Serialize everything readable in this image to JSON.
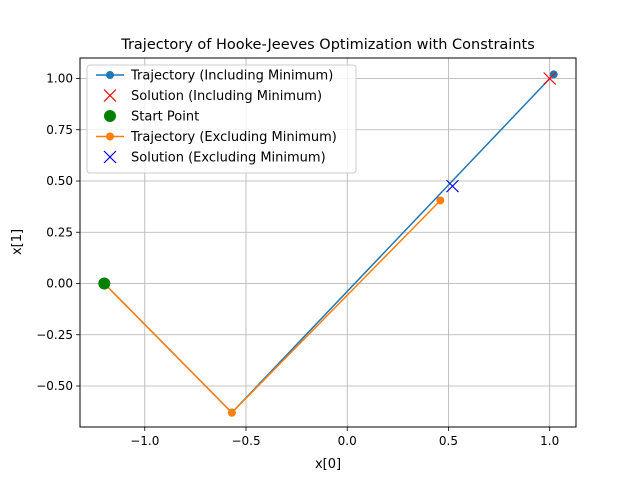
{
  "chart_data": {
    "type": "line",
    "title": "Trajectory of Hooke-Jeeves Optimization with Constraints",
    "xlabel": "x[0]",
    "ylabel": "x[1]",
    "xlim": [
      -1.32,
      1.13
    ],
    "ylim": [
      -0.7,
      1.1
    ],
    "grid": true,
    "legend_position": "top-left",
    "x_ticks": [
      -1.0,
      -0.5,
      0.0,
      0.5,
      1.0
    ],
    "x_tick_labels": [
      "−1.0",
      "−0.5",
      "0.0",
      "0.5",
      "1.0"
    ],
    "y_ticks": [
      -0.5,
      -0.25,
      0.0,
      0.25,
      0.5,
      0.75,
      1.0
    ],
    "y_tick_labels": [
      "−0.50",
      "−0.25",
      "0.00",
      "0.25",
      "0.50",
      "0.75",
      "1.00"
    ],
    "series": [
      {
        "name": "Trajectory (Including Minimum)",
        "kind": "line-marker",
        "color": "#1f77b4",
        "x": [
          -1.2,
          -0.57,
          1.02
        ],
        "y": [
          0.0,
          -0.63,
          1.02
        ]
      },
      {
        "name": "Solution (Including Minimum)",
        "kind": "x-marker",
        "color": "#ff0000",
        "x": [
          1.0
        ],
        "y": [
          1.0
        ]
      },
      {
        "name": "Start Point",
        "kind": "big-circle",
        "color": "#008000",
        "x": [
          -1.2
        ],
        "y": [
          0.0
        ]
      },
      {
        "name": "Trajectory (Excluding Minimum)",
        "kind": "line-marker",
        "color": "#ff7f0e",
        "x": [
          -1.2,
          -0.57,
          0.46
        ],
        "y": [
          0.0,
          -0.63,
          0.405
        ]
      },
      {
        "name": "Solution (Excluding Minimum)",
        "kind": "x-marker",
        "color": "#0000ff",
        "x": [
          0.52
        ],
        "y": [
          0.475
        ]
      }
    ]
  }
}
